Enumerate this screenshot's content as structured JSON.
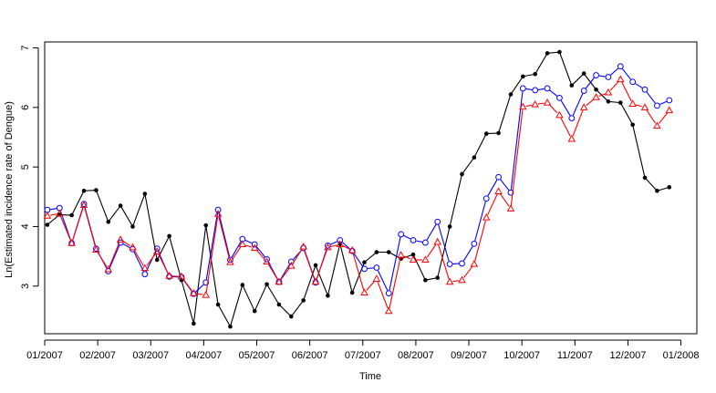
{
  "chart_data": {
    "type": "line",
    "title": "",
    "xlabel": "Time",
    "ylabel": "Ln(Estimated incidence rate of Dengue)",
    "xlim": [
      0,
      12.3
    ],
    "ylim": [
      2.2,
      7.1
    ],
    "x_ticks": [
      {
        "label": "01/2007",
        "value": 0
      },
      {
        "label": "02/2007",
        "value": 1
      },
      {
        "label": "03/2007",
        "value": 2
      },
      {
        "label": "04/2007",
        "value": 3
      },
      {
        "label": "05/2007",
        "value": 4
      },
      {
        "label": "06/2007",
        "value": 5
      },
      {
        "label": "07/2007",
        "value": 6
      },
      {
        "label": "08/2007",
        "value": 7
      },
      {
        "label": "09/2007",
        "value": 8
      },
      {
        "label": "10/2007",
        "value": 9
      },
      {
        "label": "11/2007",
        "value": 10
      },
      {
        "label": "12/2007",
        "value": 11
      },
      {
        "label": "01/2008",
        "value": 12
      }
    ],
    "y_ticks": [
      3,
      4,
      5,
      6,
      7
    ],
    "grid": false,
    "legend": "none",
    "x": [
      0.05,
      0.28,
      0.51,
      0.74,
      0.97,
      1.2,
      1.43,
      1.66,
      1.89,
      2.12,
      2.35,
      2.58,
      2.81,
      3.04,
      3.27,
      3.5,
      3.73,
      3.96,
      4.19,
      4.42,
      4.65,
      4.88,
      5.11,
      5.34,
      5.57,
      5.8,
      6.03,
      6.26,
      6.49,
      6.72,
      6.95,
      7.18,
      7.41,
      7.64,
      7.87,
      8.1,
      8.33,
      8.56,
      8.79,
      9.02,
      9.25,
      9.48,
      9.71,
      9.94,
      10.17,
      10.4,
      10.63,
      10.86,
      11.09,
      11.32,
      11.55,
      11.78
    ],
    "series": [
      {
        "color": "#000000",
        "marker": "filled-circle",
        "values": [
          4.03,
          4.2,
          4.19,
          4.6,
          4.61,
          4.08,
          4.35,
          4.0,
          4.55,
          3.44,
          3.84,
          3.1,
          2.37,
          4.02,
          2.69,
          2.32,
          3.02,
          2.58,
          3.03,
          2.69,
          2.49,
          2.76,
          3.35,
          2.84,
          3.71,
          2.89,
          3.4,
          3.57,
          3.57,
          3.46,
          3.53,
          3.1,
          3.14,
          4.0,
          4.88,
          5.16,
          5.56,
          5.57,
          6.22,
          6.52,
          6.56,
          6.91,
          6.93,
          6.37,
          6.57,
          6.3,
          6.1,
          6.08,
          5.71,
          4.82,
          4.6,
          4.66
        ]
      },
      {
        "color": "#0000ff",
        "marker": "open-circle",
        "values": [
          4.28,
          4.31,
          3.72,
          4.38,
          3.63,
          3.25,
          3.73,
          3.62,
          3.2,
          3.63,
          3.16,
          3.15,
          2.87,
          3.06,
          4.28,
          3.44,
          3.79,
          3.7,
          3.45,
          3.07,
          3.41,
          3.64,
          3.06,
          3.68,
          3.77,
          3.59,
          3.29,
          3.31,
          2.88,
          3.87,
          3.77,
          3.73,
          4.08,
          3.37,
          3.38,
          3.71,
          4.47,
          4.83,
          4.57,
          6.32,
          6.29,
          6.32,
          6.16,
          5.82,
          6.28,
          6.54,
          6.51,
          6.69,
          6.43,
          6.3,
          6.03,
          6.12
        ]
      },
      {
        "color": "#ff0000",
        "marker": "open-triangle",
        "values": [
          4.18,
          4.22,
          3.72,
          4.36,
          3.61,
          3.28,
          3.78,
          3.65,
          3.3,
          3.58,
          3.17,
          3.16,
          2.88,
          2.85,
          4.21,
          3.4,
          3.7,
          3.64,
          3.41,
          3.07,
          3.34,
          3.66,
          3.07,
          3.65,
          3.7,
          3.6,
          2.89,
          3.12,
          2.58,
          3.52,
          3.44,
          3.44,
          3.74,
          3.07,
          3.1,
          3.37,
          4.15,
          4.59,
          4.3,
          6.01,
          6.05,
          6.08,
          5.87,
          5.47,
          6.0,
          6.17,
          6.25,
          6.47,
          6.06,
          6.0,
          5.69,
          5.95
        ]
      }
    ]
  }
}
